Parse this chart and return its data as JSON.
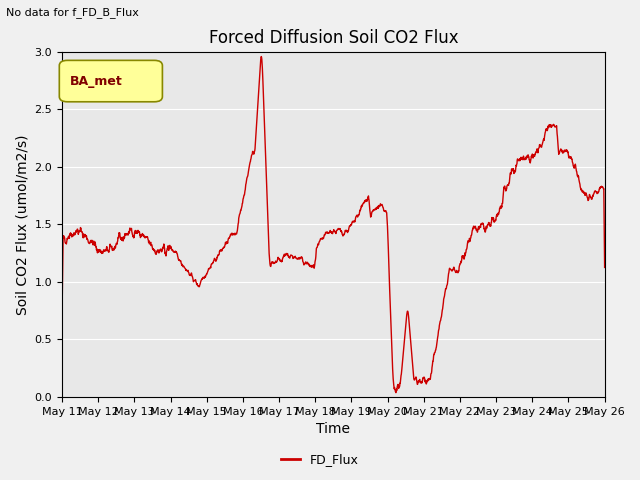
{
  "title": "Forced Diffusion Soil CO2 Flux",
  "subtitle": "No data for f_FD_B_Flux",
  "xlabel": "Time",
  "ylabel": "Soil CO2 Flux (umol/m2/s)",
  "ylim": [
    0.0,
    3.0
  ],
  "yticks": [
    0.0,
    0.5,
    1.0,
    1.5,
    2.0,
    2.5,
    3.0
  ],
  "xtick_labels": [
    "May 11",
    "May 12",
    "May 13",
    "May 14",
    "May 15",
    "May 16",
    "May 17",
    "May 18",
    "May 19",
    "May 20",
    "May 21",
    "May 22",
    "May 23",
    "May 24",
    "May 25",
    "May 26"
  ],
  "line_color": "#cc0000",
  "line_label": "FD_Flux",
  "legend_label": "BA_met",
  "plot_bg_color": "#e8e8e8",
  "fig_bg_color": "#f0f0f0",
  "title_fontsize": 12,
  "axis_label_fontsize": 10,
  "tick_label_fontsize": 8
}
